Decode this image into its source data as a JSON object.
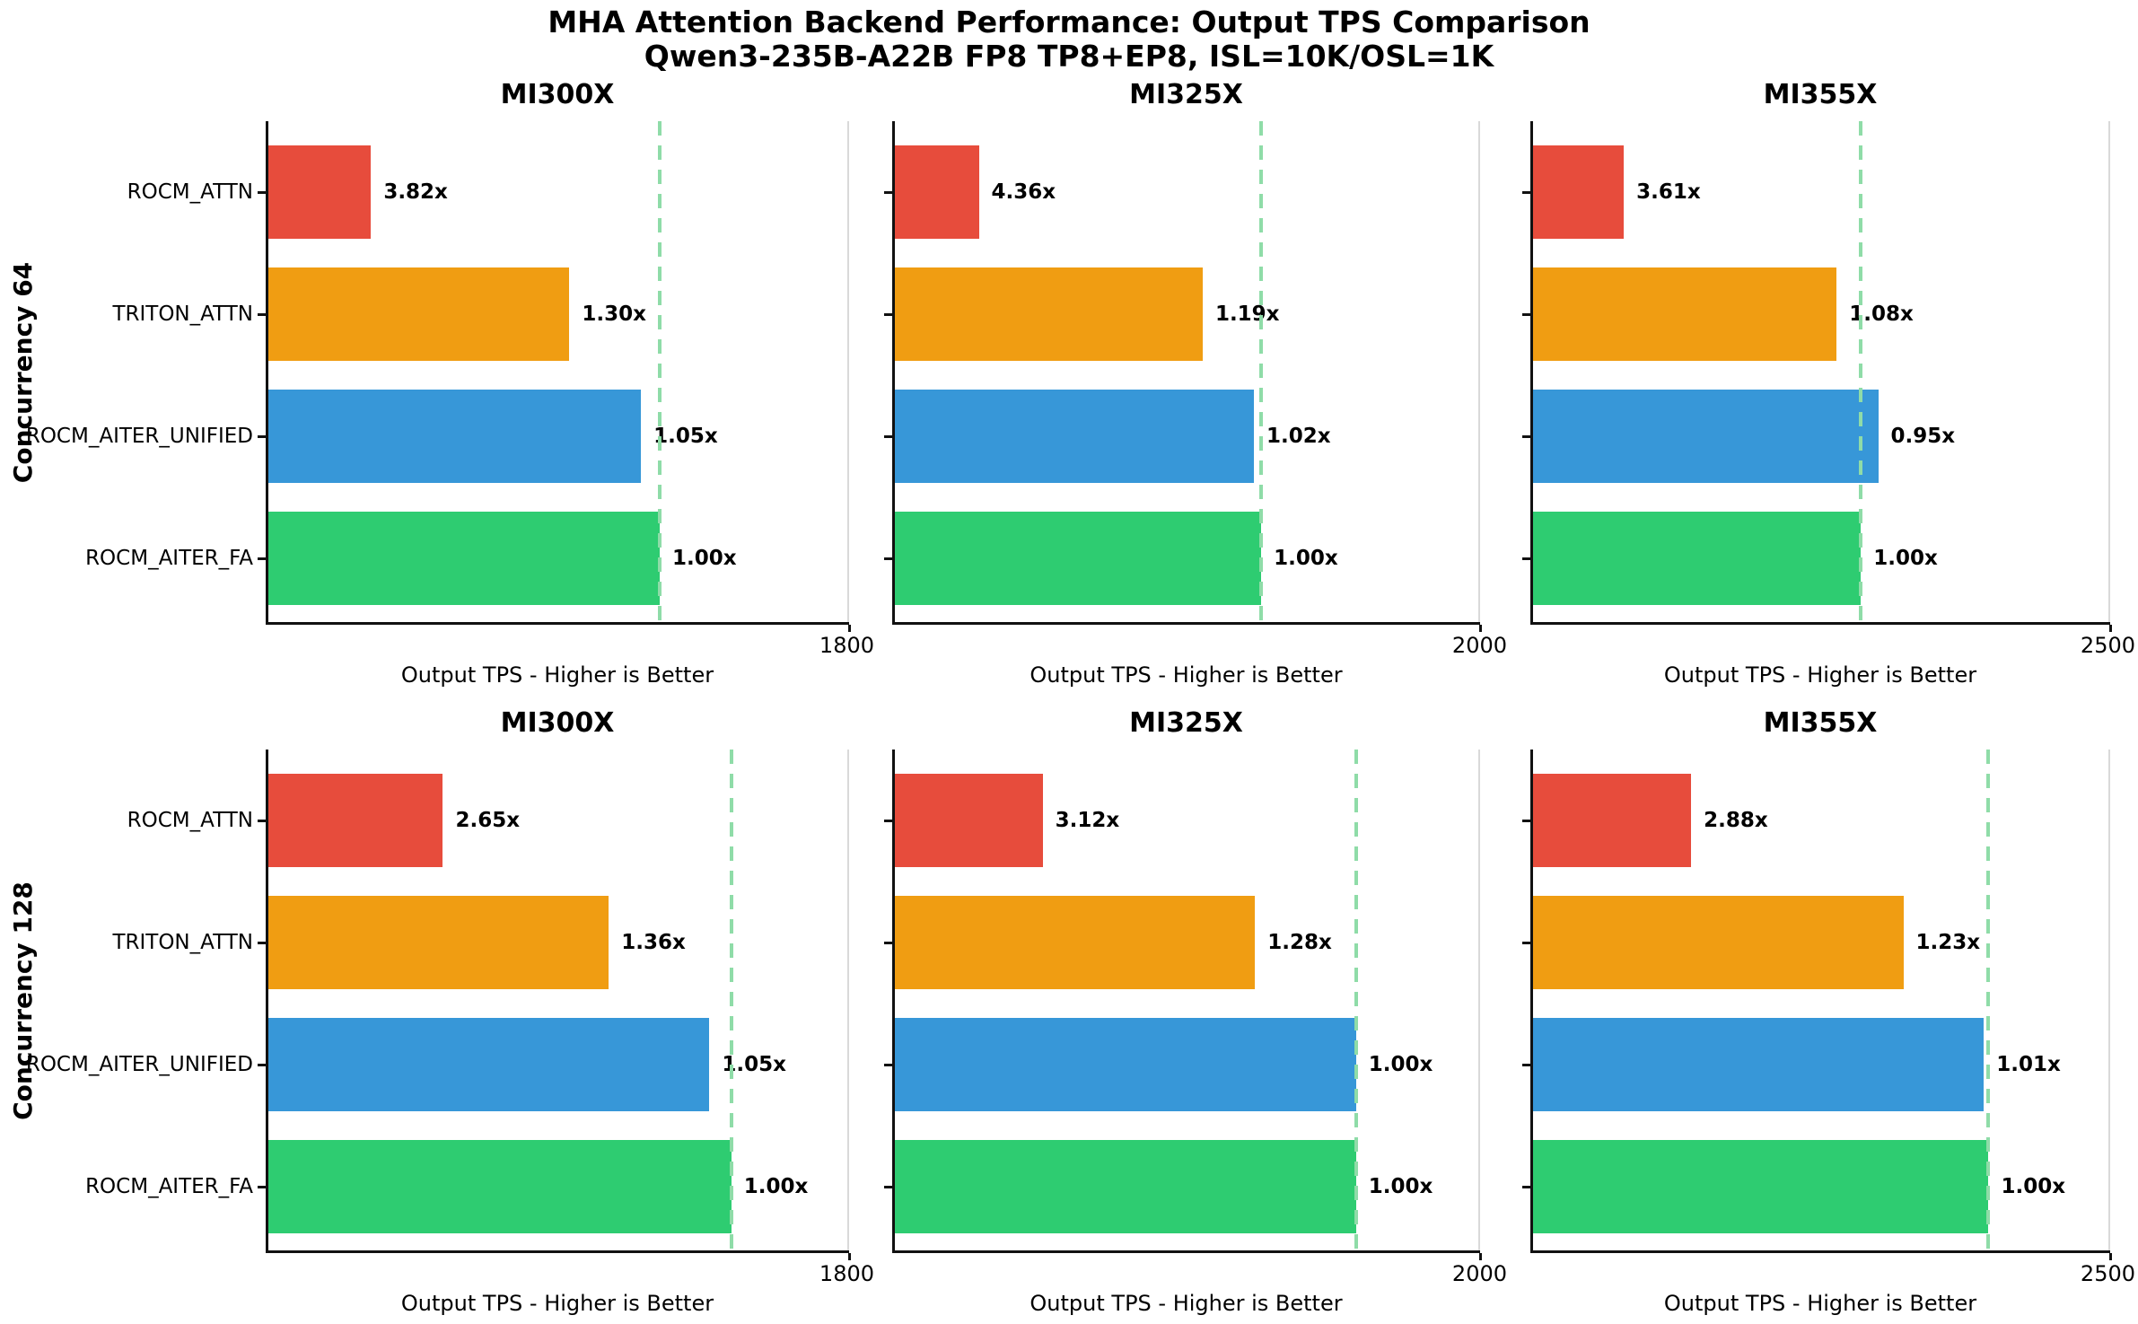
{
  "chart_data": {
    "type": "bar",
    "orientation": "horizontal",
    "title": "MHA Attention Backend Performance: Output TPS Comparison",
    "subtitle": "Qwen3-235B-A22B FP8 TP8+EP8, ISL=10K/OSL=1K",
    "xlabel": "Output TPS - Higher is Better",
    "categories": [
      "ROCM_ATTN",
      "TRITON_ATTN",
      "ROCM_AITER_UNIFIED",
      "ROCM_AITER_FA"
    ],
    "baseline_backend": "ROCM_AITER_FA",
    "legend": "none",
    "grid": "off",
    "series_colors": {
      "ROCM_ATTN": "#e74c3c",
      "TRITON_ATTN": "#f09d12",
      "ROCM_AITER_UNIFIED": "#3797d8",
      "ROCM_AITER_FA": "#2ecc71"
    },
    "baseline_line_color": "#8fdca8",
    "rows": [
      {
        "label": "Concurrency 64",
        "panels": [
          {
            "title": "MI300X",
            "xlim": [
              0,
              1800
            ],
            "x_max_label": "1800",
            "baseline_tps_est": 1213,
            "bars": [
              {
                "backend": "ROCM_ATTN",
                "speedup_label": "3.82x",
                "speedup_vs_baseline": 3.82,
                "tps_est": 318
              },
              {
                "backend": "TRITON_ATTN",
                "speedup_label": "1.30x",
                "speedup_vs_baseline": 1.3,
                "tps_est": 933
              },
              {
                "backend": "ROCM_AITER_UNIFIED",
                "speedup_label": "1.05x",
                "speedup_vs_baseline": 1.05,
                "tps_est": 1155
              },
              {
                "backend": "ROCM_AITER_FA",
                "speedup_label": "1.00x",
                "speedup_vs_baseline": 1.0,
                "tps_est": 1213
              }
            ]
          },
          {
            "title": "MI325X",
            "xlim": [
              0,
              2000
            ],
            "x_max_label": "2000",
            "baseline_tps_est": 1252,
            "bars": [
              {
                "backend": "ROCM_ATTN",
                "speedup_label": "4.36x",
                "speedup_vs_baseline": 4.36,
                "tps_est": 287
              },
              {
                "backend": "TRITON_ATTN",
                "speedup_label": "1.19x",
                "speedup_vs_baseline": 1.19,
                "tps_est": 1052
              },
              {
                "backend": "ROCM_AITER_UNIFIED",
                "speedup_label": "1.02x",
                "speedup_vs_baseline": 1.02,
                "tps_est": 1227
              },
              {
                "backend": "ROCM_AITER_FA",
                "speedup_label": "1.00x",
                "speedup_vs_baseline": 1.0,
                "tps_est": 1252
              }
            ]
          },
          {
            "title": "MI355X",
            "xlim": [
              0,
              2500
            ],
            "x_max_label": "2500",
            "baseline_tps_est": 1420,
            "bars": [
              {
                "backend": "ROCM_ATTN",
                "speedup_label": "3.61x",
                "speedup_vs_baseline": 3.61,
                "tps_est": 393
              },
              {
                "backend": "TRITON_ATTN",
                "speedup_label": "1.08x",
                "speedup_vs_baseline": 1.08,
                "tps_est": 1315
              },
              {
                "backend": "ROCM_AITER_UNIFIED",
                "speedup_label": "0.95x",
                "speedup_vs_baseline": 0.95,
                "tps_est": 1495
              },
              {
                "backend": "ROCM_AITER_FA",
                "speedup_label": "1.00x",
                "speedup_vs_baseline": 1.0,
                "tps_est": 1420
              }
            ]
          }
        ]
      },
      {
        "label": "Concurrency 128",
        "panels": [
          {
            "title": "MI300X",
            "xlim": [
              0,
              1800
            ],
            "x_max_label": "1800",
            "baseline_tps_est": 1435,
            "bars": [
              {
                "backend": "ROCM_ATTN",
                "speedup_label": "2.65x",
                "speedup_vs_baseline": 2.65,
                "tps_est": 541
              },
              {
                "backend": "TRITON_ATTN",
                "speedup_label": "1.36x",
                "speedup_vs_baseline": 1.36,
                "tps_est": 1055
              },
              {
                "backend": "ROCM_AITER_UNIFIED",
                "speedup_label": "1.05x",
                "speedup_vs_baseline": 1.05,
                "tps_est": 1367
              },
              {
                "backend": "ROCM_AITER_FA",
                "speedup_label": "1.00x",
                "speedup_vs_baseline": 1.0,
                "tps_est": 1435
              }
            ]
          },
          {
            "title": "MI325X",
            "xlim": [
              0,
              2000
            ],
            "x_max_label": "2000",
            "baseline_tps_est": 1576,
            "bars": [
              {
                "backend": "ROCM_ATTN",
                "speedup_label": "3.12x",
                "speedup_vs_baseline": 3.12,
                "tps_est": 505
              },
              {
                "backend": "TRITON_ATTN",
                "speedup_label": "1.28x",
                "speedup_vs_baseline": 1.28,
                "tps_est": 1231
              },
              {
                "backend": "ROCM_AITER_UNIFIED",
                "speedup_label": "1.00x",
                "speedup_vs_baseline": 1.0,
                "tps_est": 1576
              },
              {
                "backend": "ROCM_AITER_FA",
                "speedup_label": "1.00x",
                "speedup_vs_baseline": 1.0,
                "tps_est": 1576
              }
            ]
          },
          {
            "title": "MI355X",
            "xlim": [
              0,
              2500
            ],
            "x_max_label": "2500",
            "baseline_tps_est": 1973,
            "bars": [
              {
                "backend": "ROCM_ATTN",
                "speedup_label": "2.88x",
                "speedup_vs_baseline": 2.88,
                "tps_est": 685
              },
              {
                "backend": "TRITON_ATTN",
                "speedup_label": "1.23x",
                "speedup_vs_baseline": 1.23,
                "tps_est": 1604
              },
              {
                "backend": "ROCM_AITER_UNIFIED",
                "speedup_label": "1.01x",
                "speedup_vs_baseline": 1.01,
                "tps_est": 1953
              },
              {
                "backend": "ROCM_AITER_FA",
                "speedup_label": "1.00x",
                "speedup_vs_baseline": 1.0,
                "tps_est": 1973
              }
            ]
          }
        ]
      }
    ]
  }
}
